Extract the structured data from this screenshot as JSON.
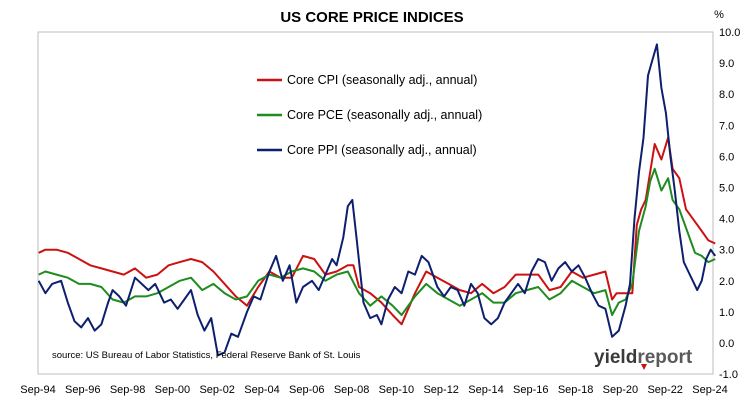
{
  "chart_data": {
    "type": "line",
    "title": "US CORE PRICE INDICES",
    "y_unit_label": "%",
    "ylim": [
      -1.0,
      10.0
    ],
    "y_ticks": [
      "-1.0",
      "0.0",
      "1.0",
      "2.0",
      "3.0",
      "4.0",
      "5.0",
      "6.0",
      "7.0",
      "8.0",
      "9.0",
      "10.0"
    ],
    "xlim": [
      1994.67,
      2024.9
    ],
    "x_ticks": [
      {
        "label": "Sep-94",
        "x": 1994.67
      },
      {
        "label": "Sep-96",
        "x": 1996.67
      },
      {
        "label": "Sep-98",
        "x": 1998.67
      },
      {
        "label": "Sep-00",
        "x": 2000.67
      },
      {
        "label": "Sep-02",
        "x": 2002.67
      },
      {
        "label": "Sep-04",
        "x": 2004.67
      },
      {
        "label": "Sep-06",
        "x": 2006.67
      },
      {
        "label": "Sep-08",
        "x": 2008.67
      },
      {
        "label": "Sep-10",
        "x": 2010.67
      },
      {
        "label": "Sep-12",
        "x": 2012.67
      },
      {
        "label": "Sep-14",
        "x": 2014.67
      },
      {
        "label": "Sep-16",
        "x": 2016.67
      },
      {
        "label": "Sep-18",
        "x": 2018.67
      },
      {
        "label": "Sep-20",
        "x": 2020.67
      },
      {
        "label": "Sep-22",
        "x": 2022.67
      },
      {
        "label": "Sep-24",
        "x": 2024.67
      }
    ],
    "grid": false,
    "legend_position": "top-center",
    "series": [
      {
        "name": "Core CPI (seasonally adj., annual)",
        "color": "#cc1111",
        "points": [
          [
            1994.7,
            2.9
          ],
          [
            1995.0,
            3.0
          ],
          [
            1995.5,
            3.0
          ],
          [
            1996.0,
            2.9
          ],
          [
            1996.5,
            2.7
          ],
          [
            1997.0,
            2.5
          ],
          [
            1997.5,
            2.4
          ],
          [
            1998.0,
            2.3
          ],
          [
            1998.5,
            2.2
          ],
          [
            1999.0,
            2.4
          ],
          [
            1999.5,
            2.1
          ],
          [
            2000.0,
            2.2
          ],
          [
            2000.5,
            2.5
          ],
          [
            2001.0,
            2.6
          ],
          [
            2001.5,
            2.7
          ],
          [
            2002.0,
            2.6
          ],
          [
            2002.5,
            2.3
          ],
          [
            2003.0,
            1.9
          ],
          [
            2003.5,
            1.5
          ],
          [
            2004.0,
            1.2
          ],
          [
            2004.5,
            1.8
          ],
          [
            2005.0,
            2.3
          ],
          [
            2005.5,
            2.1
          ],
          [
            2006.0,
            2.1
          ],
          [
            2006.5,
            2.8
          ],
          [
            2007.0,
            2.7
          ],
          [
            2007.5,
            2.2
          ],
          [
            2008.0,
            2.3
          ],
          [
            2008.5,
            2.5
          ],
          [
            2008.75,
            2.5
          ],
          [
            2009.0,
            1.8
          ],
          [
            2009.5,
            1.6
          ],
          [
            2010.0,
            1.3
          ],
          [
            2010.5,
            0.9
          ],
          [
            2010.9,
            0.6
          ],
          [
            2011.5,
            1.6
          ],
          [
            2012.0,
            2.3
          ],
          [
            2012.5,
            2.1
          ],
          [
            2013.0,
            1.9
          ],
          [
            2013.5,
            1.7
          ],
          [
            2014.0,
            1.6
          ],
          [
            2014.5,
            1.9
          ],
          [
            2015.0,
            1.6
          ],
          [
            2015.5,
            1.8
          ],
          [
            2016.0,
            2.2
          ],
          [
            2016.5,
            2.2
          ],
          [
            2017.0,
            2.2
          ],
          [
            2017.5,
            1.7
          ],
          [
            2018.0,
            1.8
          ],
          [
            2018.5,
            2.3
          ],
          [
            2019.0,
            2.1
          ],
          [
            2019.5,
            2.2
          ],
          [
            2020.0,
            2.3
          ],
          [
            2020.3,
            1.4
          ],
          [
            2020.5,
            1.6
          ],
          [
            2020.9,
            1.6
          ],
          [
            2021.2,
            1.6
          ],
          [
            2021.4,
            3.8
          ],
          [
            2021.6,
            4.3
          ],
          [
            2021.8,
            4.6
          ],
          [
            2022.0,
            5.5
          ],
          [
            2022.2,
            6.4
          ],
          [
            2022.5,
            5.9
          ],
          [
            2022.8,
            6.6
          ],
          [
            2023.0,
            5.6
          ],
          [
            2023.3,
            5.3
          ],
          [
            2023.6,
            4.3
          ],
          [
            2024.0,
            3.9
          ],
          [
            2024.3,
            3.6
          ],
          [
            2024.6,
            3.3
          ],
          [
            2024.9,
            3.2
          ]
        ]
      },
      {
        "name": "Core PCE (seasonally adj., annual)",
        "color": "#1e8c1e",
        "points": [
          [
            1994.7,
            2.2
          ],
          [
            1995.0,
            2.3
          ],
          [
            1995.5,
            2.2
          ],
          [
            1996.0,
            2.1
          ],
          [
            1996.5,
            1.9
          ],
          [
            1997.0,
            1.9
          ],
          [
            1997.5,
            1.8
          ],
          [
            1998.0,
            1.4
          ],
          [
            1998.5,
            1.3
          ],
          [
            1999.0,
            1.5
          ],
          [
            1999.5,
            1.5
          ],
          [
            2000.0,
            1.6
          ],
          [
            2000.5,
            1.8
          ],
          [
            2001.0,
            2.0
          ],
          [
            2001.5,
            2.1
          ],
          [
            2002.0,
            1.7
          ],
          [
            2002.5,
            1.9
          ],
          [
            2003.0,
            1.6
          ],
          [
            2003.5,
            1.4
          ],
          [
            2004.0,
            1.5
          ],
          [
            2004.5,
            2.0
          ],
          [
            2005.0,
            2.2
          ],
          [
            2005.5,
            2.1
          ],
          [
            2006.0,
            2.3
          ],
          [
            2006.5,
            2.4
          ],
          [
            2007.0,
            2.3
          ],
          [
            2007.5,
            2.0
          ],
          [
            2008.0,
            2.2
          ],
          [
            2008.5,
            2.3
          ],
          [
            2009.0,
            1.6
          ],
          [
            2009.5,
            1.2
          ],
          [
            2010.0,
            1.5
          ],
          [
            2010.5,
            1.2
          ],
          [
            2010.9,
            0.9
          ],
          [
            2011.5,
            1.5
          ],
          [
            2012.0,
            1.9
          ],
          [
            2012.5,
            1.6
          ],
          [
            2013.0,
            1.4
          ],
          [
            2013.5,
            1.2
          ],
          [
            2014.0,
            1.4
          ],
          [
            2014.5,
            1.6
          ],
          [
            2015.0,
            1.3
          ],
          [
            2015.5,
            1.3
          ],
          [
            2016.0,
            1.6
          ],
          [
            2016.5,
            1.7
          ],
          [
            2017.0,
            1.8
          ],
          [
            2017.5,
            1.4
          ],
          [
            2018.0,
            1.6
          ],
          [
            2018.5,
            2.0
          ],
          [
            2019.0,
            1.8
          ],
          [
            2019.5,
            1.6
          ],
          [
            2020.0,
            1.7
          ],
          [
            2020.3,
            0.9
          ],
          [
            2020.6,
            1.3
          ],
          [
            2020.9,
            1.4
          ],
          [
            2021.2,
            1.9
          ],
          [
            2021.5,
            3.6
          ],
          [
            2021.8,
            4.4
          ],
          [
            2022.0,
            5.2
          ],
          [
            2022.2,
            5.6
          ],
          [
            2022.5,
            4.9
          ],
          [
            2022.8,
            5.3
          ],
          [
            2023.0,
            4.6
          ],
          [
            2023.3,
            4.3
          ],
          [
            2023.6,
            3.7
          ],
          [
            2024.0,
            2.9
          ],
          [
            2024.3,
            2.8
          ],
          [
            2024.6,
            2.6
          ],
          [
            2024.9,
            2.7
          ]
        ]
      },
      {
        "name": "Core PPI (seasonally adj., annual)",
        "color": "#0d1f6e",
        "points": [
          [
            1994.7,
            2.0
          ],
          [
            1995.0,
            1.6
          ],
          [
            1995.3,
            1.9
          ],
          [
            1995.7,
            2.0
          ],
          [
            1996.0,
            1.3
          ],
          [
            1996.3,
            0.7
          ],
          [
            1996.6,
            0.5
          ],
          [
            1996.9,
            0.8
          ],
          [
            1997.2,
            0.4
          ],
          [
            1997.5,
            0.6
          ],
          [
            1997.8,
            1.3
          ],
          [
            1998.0,
            1.7
          ],
          [
            1998.3,
            1.5
          ],
          [
            1998.6,
            1.2
          ],
          [
            1999.0,
            2.1
          ],
          [
            1999.3,
            1.9
          ],
          [
            1999.6,
            1.7
          ],
          [
            1999.9,
            1.9
          ],
          [
            2000.3,
            1.3
          ],
          [
            2000.6,
            1.4
          ],
          [
            2000.9,
            1.1
          ],
          [
            2001.2,
            1.4
          ],
          [
            2001.5,
            1.7
          ],
          [
            2001.8,
            0.9
          ],
          [
            2002.1,
            0.4
          ],
          [
            2002.4,
            0.8
          ],
          [
            2002.7,
            -0.4
          ],
          [
            2003.0,
            -0.3
          ],
          [
            2003.3,
            0.3
          ],
          [
            2003.6,
            0.2
          ],
          [
            2004.0,
            1.0
          ],
          [
            2004.3,
            1.5
          ],
          [
            2004.6,
            1.4
          ],
          [
            2005.0,
            2.3
          ],
          [
            2005.3,
            2.8
          ],
          [
            2005.6,
            2.0
          ],
          [
            2005.9,
            2.5
          ],
          [
            2006.2,
            1.3
          ],
          [
            2006.5,
            1.8
          ],
          [
            2006.9,
            2.0
          ],
          [
            2007.2,
            1.7
          ],
          [
            2007.5,
            2.2
          ],
          [
            2007.8,
            2.7
          ],
          [
            2008.0,
            2.5
          ],
          [
            2008.3,
            3.4
          ],
          [
            2008.5,
            4.4
          ],
          [
            2008.7,
            4.6
          ],
          [
            2008.9,
            3.3
          ],
          [
            2009.2,
            1.3
          ],
          [
            2009.5,
            0.8
          ],
          [
            2009.8,
            0.9
          ],
          [
            2010.0,
            0.6
          ],
          [
            2010.3,
            1.4
          ],
          [
            2010.6,
            1.8
          ],
          [
            2010.9,
            1.6
          ],
          [
            2011.2,
            2.3
          ],
          [
            2011.5,
            2.2
          ],
          [
            2011.8,
            2.8
          ],
          [
            2012.1,
            2.6
          ],
          [
            2012.5,
            1.8
          ],
          [
            2012.8,
            1.5
          ],
          [
            2013.1,
            1.8
          ],
          [
            2013.4,
            1.7
          ],
          [
            2013.7,
            1.2
          ],
          [
            2014.0,
            1.9
          ],
          [
            2014.3,
            1.6
          ],
          [
            2014.6,
            0.8
          ],
          [
            2014.9,
            0.6
          ],
          [
            2015.2,
            0.8
          ],
          [
            2015.5,
            1.3
          ],
          [
            2015.8,
            1.6
          ],
          [
            2016.1,
            1.9
          ],
          [
            2016.4,
            1.6
          ],
          [
            2016.7,
            2.3
          ],
          [
            2017.0,
            2.7
          ],
          [
            2017.3,
            2.6
          ],
          [
            2017.6,
            2.0
          ],
          [
            2017.9,
            2.4
          ],
          [
            2018.2,
            2.6
          ],
          [
            2018.5,
            2.3
          ],
          [
            2018.8,
            2.5
          ],
          [
            2019.1,
            2.1
          ],
          [
            2019.4,
            1.6
          ],
          [
            2019.7,
            1.2
          ],
          [
            2020.0,
            1.1
          ],
          [
            2020.3,
            0.2
          ],
          [
            2020.6,
            0.4
          ],
          [
            2020.9,
            1.2
          ],
          [
            2021.1,
            1.9
          ],
          [
            2021.3,
            4.0
          ],
          [
            2021.5,
            5.5
          ],
          [
            2021.7,
            6.6
          ],
          [
            2021.9,
            8.6
          ],
          [
            2022.1,
            9.1
          ],
          [
            2022.3,
            9.6
          ],
          [
            2022.5,
            8.2
          ],
          [
            2022.7,
            7.4
          ],
          [
            2022.9,
            6.0
          ],
          [
            2023.1,
            4.9
          ],
          [
            2023.3,
            3.6
          ],
          [
            2023.5,
            2.6
          ],
          [
            2023.7,
            2.3
          ],
          [
            2023.9,
            2.0
          ],
          [
            2024.1,
            1.7
          ],
          [
            2024.3,
            2.0
          ],
          [
            2024.5,
            2.7
          ],
          [
            2024.7,
            3.0
          ],
          [
            2024.9,
            2.8
          ]
        ]
      }
    ],
    "source": "source: US Bureau of Labor Statistics, Federal Reserve Bank of St. Louis"
  },
  "brand": {
    "part1": "yield",
    "part2": "report",
    "accent_color": "#cc1111"
  }
}
